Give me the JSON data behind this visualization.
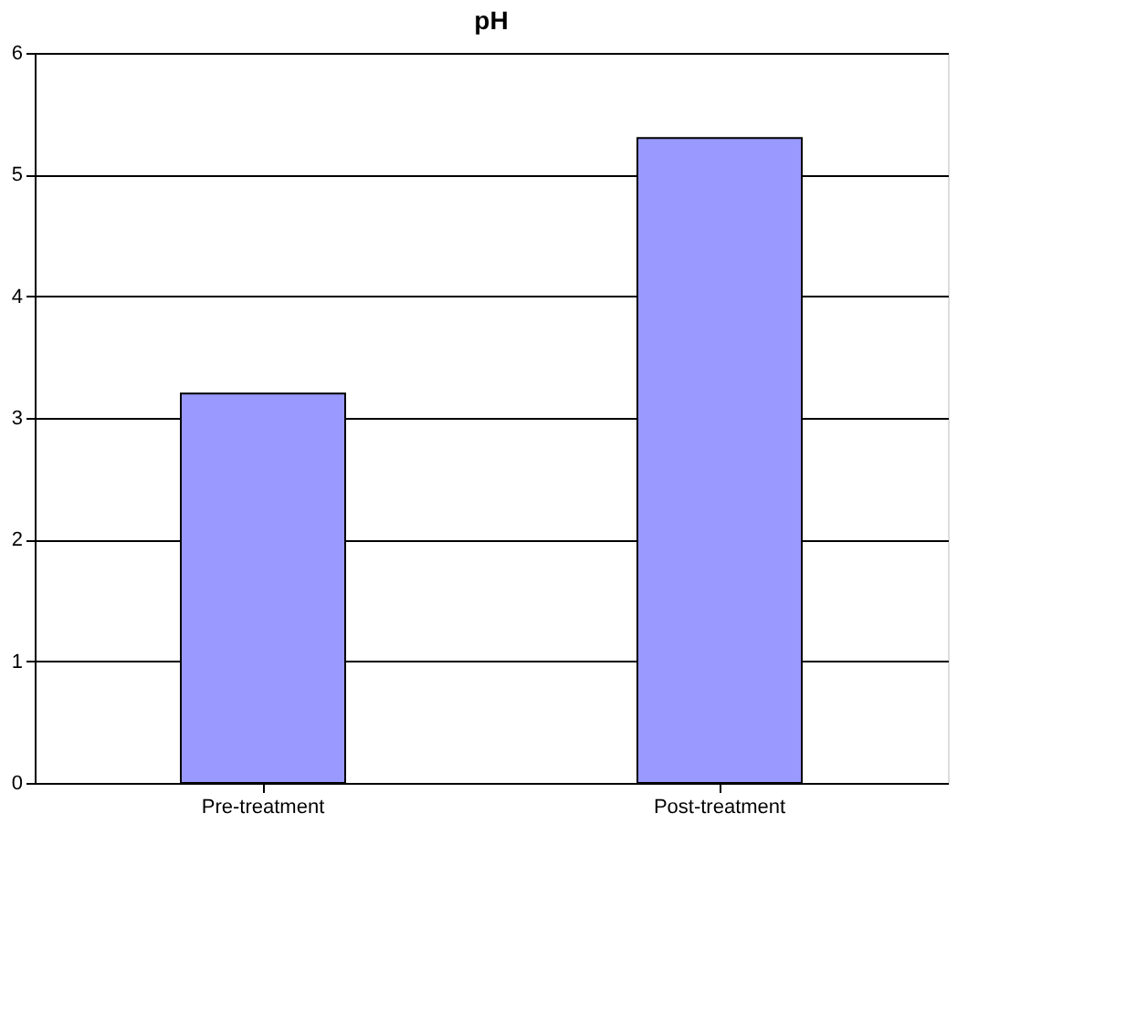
{
  "chart_data": {
    "type": "bar",
    "title": "pH",
    "categories": [
      "Pre-treatment",
      "Post-treatment"
    ],
    "values": [
      3.2,
      5.3
    ],
    "color": "#9999ff",
    "ylim": [
      0,
      6
    ],
    "yticks": [
      0,
      1,
      2,
      3,
      4,
      5,
      6
    ],
    "grid": "y"
  }
}
